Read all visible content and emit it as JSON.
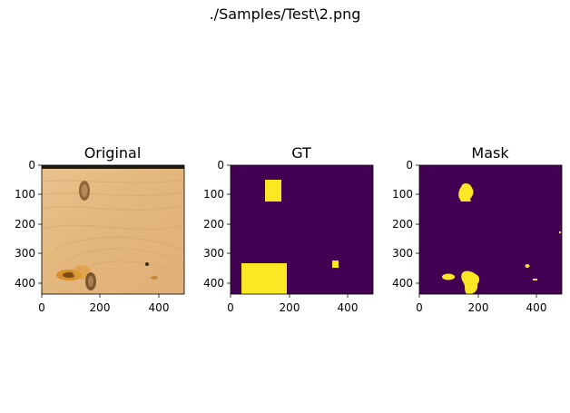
{
  "figure": {
    "suptitle": "./Samples/Test\\2.png"
  },
  "panels": [
    {
      "title": "Original",
      "x_ticks": [
        "0",
        "200",
        "400"
      ],
      "y_ticks": [
        "0",
        "100",
        "200",
        "300",
        "400"
      ]
    },
    {
      "title": "GT",
      "x_ticks": [
        "0",
        "200",
        "400"
      ],
      "y_ticks": [
        "0",
        "100",
        "200",
        "300",
        "400"
      ],
      "background_color": "#440154",
      "foreground_color": "#fde725"
    },
    {
      "title": "Mask",
      "x_ticks": [
        "0",
        "200",
        "400"
      ],
      "y_ticks": [
        "0",
        "100",
        "200",
        "300",
        "400"
      ],
      "background_color": "#440154",
      "foreground_color": "#fde725"
    }
  ]
}
